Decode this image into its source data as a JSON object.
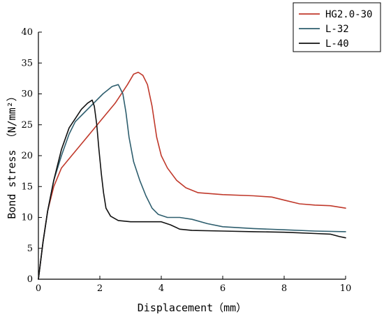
{
  "chart_data": {
    "type": "line",
    "xlabel": "Displacement（mm）",
    "ylabel": "Bond stress （N/mm²）",
    "xlim": [
      0,
      10
    ],
    "ylim": [
      0,
      40
    ],
    "x_ticks": [
      0,
      2,
      4,
      6,
      8,
      10
    ],
    "y_ticks": [
      0,
      5,
      10,
      15,
      20,
      25,
      30,
      35,
      40
    ],
    "grid": false,
    "legend_position": "top-right",
    "series": [
      {
        "name": "HG2.0-30",
        "color": "#c0392b",
        "points": [
          [
            0,
            0
          ],
          [
            0.15,
            6
          ],
          [
            0.3,
            11
          ],
          [
            0.5,
            15
          ],
          [
            0.75,
            18
          ],
          [
            1.0,
            19.5
          ],
          [
            1.5,
            22.5
          ],
          [
            2.0,
            25.5
          ],
          [
            2.5,
            28.5
          ],
          [
            2.9,
            31.5
          ],
          [
            3.1,
            33.2
          ],
          [
            3.25,
            33.5
          ],
          [
            3.4,
            33
          ],
          [
            3.55,
            31.5
          ],
          [
            3.7,
            28
          ],
          [
            3.85,
            23
          ],
          [
            4.0,
            20
          ],
          [
            4.2,
            18
          ],
          [
            4.5,
            16
          ],
          [
            4.8,
            14.8
          ],
          [
            5.2,
            14
          ],
          [
            6.0,
            13.7
          ],
          [
            7.0,
            13.5
          ],
          [
            7.6,
            13.3
          ],
          [
            8.0,
            12.8
          ],
          [
            8.5,
            12.2
          ],
          [
            9.0,
            12.0
          ],
          [
            9.5,
            11.9
          ],
          [
            10.0,
            11.5
          ]
        ]
      },
      {
        "name": "L-32",
        "color": "#2e5e6e",
        "points": [
          [
            0,
            0
          ],
          [
            0.15,
            6
          ],
          [
            0.3,
            11
          ],
          [
            0.5,
            16
          ],
          [
            0.75,
            20
          ],
          [
            1.0,
            23.5
          ],
          [
            1.2,
            25.5
          ],
          [
            1.5,
            27
          ],
          [
            1.8,
            28.5
          ],
          [
            2.1,
            30
          ],
          [
            2.4,
            31.2
          ],
          [
            2.6,
            31.5
          ],
          [
            2.75,
            30
          ],
          [
            2.85,
            27
          ],
          [
            2.95,
            23
          ],
          [
            3.1,
            19
          ],
          [
            3.3,
            16
          ],
          [
            3.5,
            13.5
          ],
          [
            3.7,
            11.5
          ],
          [
            3.9,
            10.5
          ],
          [
            4.2,
            10
          ],
          [
            4.6,
            10
          ],
          [
            5.0,
            9.7
          ],
          [
            5.5,
            9
          ],
          [
            6.0,
            8.5
          ],
          [
            7.0,
            8.2
          ],
          [
            8.0,
            8.0
          ],
          [
            9.0,
            7.8
          ],
          [
            10.0,
            7.7
          ]
        ]
      },
      {
        "name": "L-40",
        "color": "#111111",
        "points": [
          [
            0,
            0
          ],
          [
            0.15,
            6
          ],
          [
            0.3,
            11
          ],
          [
            0.5,
            16
          ],
          [
            0.75,
            21
          ],
          [
            1.0,
            24.5
          ],
          [
            1.2,
            26
          ],
          [
            1.4,
            27.5
          ],
          [
            1.6,
            28.5
          ],
          [
            1.75,
            29
          ],
          [
            1.82,
            28
          ],
          [
            1.9,
            25
          ],
          [
            1.97,
            21
          ],
          [
            2.05,
            17
          ],
          [
            2.12,
            14
          ],
          [
            2.2,
            11.5
          ],
          [
            2.35,
            10.2
          ],
          [
            2.6,
            9.5
          ],
          [
            3.0,
            9.3
          ],
          [
            3.5,
            9.3
          ],
          [
            4.0,
            9.3
          ],
          [
            4.3,
            8.8
          ],
          [
            4.6,
            8.1
          ],
          [
            5.0,
            7.9
          ],
          [
            6.0,
            7.8
          ],
          [
            7.0,
            7.7
          ],
          [
            8.0,
            7.6
          ],
          [
            9.0,
            7.4
          ],
          [
            9.5,
            7.3
          ],
          [
            9.8,
            6.9
          ],
          [
            10.0,
            6.7
          ]
        ]
      }
    ]
  }
}
